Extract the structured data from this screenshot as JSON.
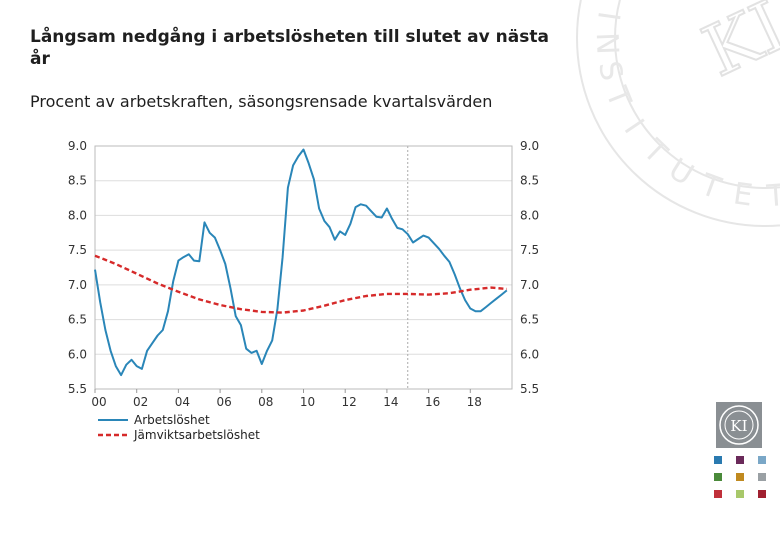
{
  "slide": {
    "title": "Långsam nedgång i arbetslösheten till slutet av nästa år",
    "subtitle": "Procent av arbetskraften, säsongsrensade kvartalsvärden"
  },
  "watermark": {
    "text": "INSTITUTET",
    "monogram": "KI"
  },
  "logo": {
    "monogram": "KI"
  },
  "swatch_colors": [
    "#2a7ab0",
    "#6a2a5a",
    "#7aa7c7",
    "#4a8a3a",
    "#c08a20",
    "#9aa0a4",
    "#c0303a",
    "#a8c86a",
    "#a02030"
  ],
  "chart_data": {
    "type": "line",
    "title": "",
    "xlabel": "",
    "ylabel": "",
    "x_range": [
      2000,
      2020
    ],
    "ylim": [
      5.5,
      9.0
    ],
    "y_ticks": [
      "9.0",
      "8.5",
      "8.0",
      "7.5",
      "7.0",
      "6.5",
      "6.0",
      "5.5"
    ],
    "x_tick_labels": [
      "00",
      "02",
      "04",
      "06",
      "08",
      "10",
      "12",
      "14",
      "16",
      "18"
    ],
    "x_tick_years": [
      2000,
      2002,
      2004,
      2006,
      2008,
      2010,
      2012,
      2014,
      2016,
      2018
    ],
    "forecast_start": 2015.0,
    "legend_position": "bottom-left",
    "series": [
      {
        "name": "Arbetslöshet",
        "color": "#2a86b8",
        "style": "solid",
        "x": [
          2000.0,
          2000.25,
          2000.5,
          2000.75,
          2001.0,
          2001.25,
          2001.5,
          2001.75,
          2002.0,
          2002.25,
          2002.5,
          2002.75,
          2003.0,
          2003.25,
          2003.5,
          2003.75,
          2004.0,
          2004.25,
          2004.5,
          2004.75,
          2005.0,
          2005.25,
          2005.5,
          2005.75,
          2006.0,
          2006.25,
          2006.5,
          2006.75,
          2007.0,
          2007.25,
          2007.5,
          2007.75,
          2008.0,
          2008.25,
          2008.5,
          2008.75,
          2009.0,
          2009.25,
          2009.5,
          2009.75,
          2010.0,
          2010.25,
          2010.5,
          2010.75,
          2011.0,
          2011.25,
          2011.5,
          2011.75,
          2012.0,
          2012.25,
          2012.5,
          2012.75,
          2013.0,
          2013.25,
          2013.5,
          2013.75,
          2014.0,
          2014.25,
          2014.5,
          2014.75,
          2015.0,
          2015.25,
          2015.5,
          2015.75,
          2016.0,
          2016.25,
          2016.5,
          2016.75,
          2017.0,
          2017.25,
          2017.5,
          2017.75,
          2018.0,
          2018.25,
          2018.5,
          2018.75,
          2019.0,
          2019.25,
          2019.5,
          2019.75
        ],
        "values": [
          7.22,
          6.75,
          6.35,
          6.05,
          5.83,
          5.7,
          5.85,
          5.92,
          5.83,
          5.79,
          6.05,
          6.16,
          6.27,
          6.35,
          6.62,
          7.05,
          7.35,
          7.4,
          7.44,
          7.35,
          7.34,
          7.9,
          7.75,
          7.68,
          7.5,
          7.3,
          6.95,
          6.55,
          6.42,
          6.08,
          6.02,
          6.05,
          5.86,
          6.05,
          6.2,
          6.65,
          7.4,
          8.4,
          8.72,
          8.85,
          8.95,
          8.75,
          8.52,
          8.1,
          7.92,
          7.83,
          7.65,
          7.77,
          7.72,
          7.88,
          8.12,
          8.16,
          8.14,
          8.06,
          7.98,
          7.97,
          8.1,
          7.95,
          7.82,
          7.8,
          7.73,
          7.61,
          7.66,
          7.71,
          7.68,
          7.6,
          7.52,
          7.42,
          7.33,
          7.15,
          6.95,
          6.78,
          6.66,
          6.62,
          6.62,
          6.68,
          6.74,
          6.8,
          6.86,
          6.92
        ]
      },
      {
        "name": "Jämviktsarbetslöshet",
        "color": "#d62a2a",
        "style": "dashed",
        "x": [
          2000.0,
          2001.0,
          2002.0,
          2003.0,
          2004.0,
          2005.0,
          2006.0,
          2007.0,
          2008.0,
          2009.0,
          2010.0,
          2011.0,
          2012.0,
          2013.0,
          2014.0,
          2015.0,
          2016.0,
          2017.0,
          2018.0,
          2019.0,
          2019.75
        ],
        "values": [
          7.42,
          7.3,
          7.16,
          7.02,
          6.9,
          6.79,
          6.71,
          6.65,
          6.61,
          6.6,
          6.63,
          6.7,
          6.78,
          6.84,
          6.87,
          6.87,
          6.86,
          6.88,
          6.93,
          6.96,
          6.94
        ]
      }
    ]
  }
}
